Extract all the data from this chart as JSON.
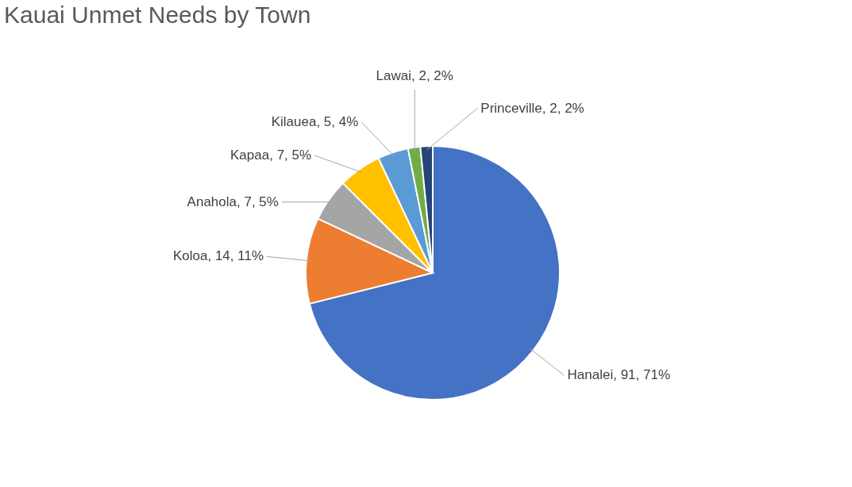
{
  "chart_data": {
    "type": "pie",
    "title": "Kauai Unmet Needs by Town",
    "categories": [
      "Hanalei",
      "Koloa",
      "Anahola",
      "Kapaa",
      "Kilauea",
      "Lawai",
      "Princeville"
    ],
    "values": [
      91,
      14,
      7,
      7,
      5,
      2,
      2
    ],
    "colors": [
      "#4472c4",
      "#ed7d31",
      "#a5a5a5",
      "#ffc000",
      "#5b9bd5",
      "#70ad47",
      "#264478"
    ],
    "value_labels": [
      "91, 71%",
      "14, 11%",
      "7, 5%",
      "7, 5%",
      "5, 4%",
      "2, 2%",
      "2, 2%"
    ],
    "legend": false
  }
}
